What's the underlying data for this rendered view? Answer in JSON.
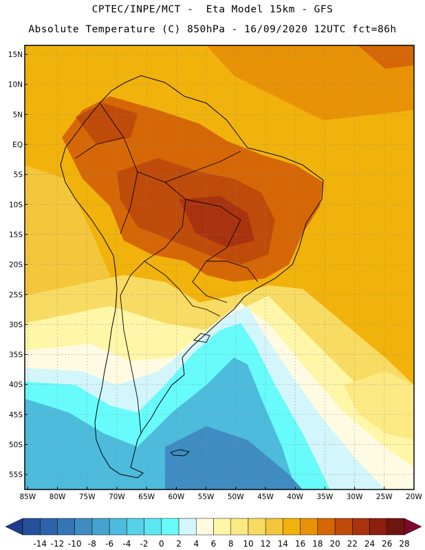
{
  "header": {
    "line1": "CPTEC/INPE/MCT -  Eta Model 15km - GFS",
    "line2": "Absolute Temperature (C) 850hPa - 16/09/2020 12UTC fct=86h"
  },
  "map": {
    "lat_labels": [
      "15N",
      "10N",
      "5N",
      "EQ",
      "5S",
      "10S",
      "15S",
      "20S",
      "25S",
      "30S",
      "35S",
      "40S",
      "45S",
      "50S",
      "55S"
    ],
    "lat_values": [
      15,
      10,
      5,
      0,
      -5,
      -10,
      -15,
      -20,
      -25,
      -30,
      -35,
      -40,
      -45,
      -50,
      -55
    ],
    "lon_labels": [
      "85W",
      "80W",
      "75W",
      "70W",
      "65W",
      "60W",
      "55W",
      "50W",
      "45W",
      "40W",
      "35W",
      "30W",
      "25W",
      "20W"
    ],
    "lon_values": [
      -85,
      -80,
      -75,
      -70,
      -65,
      -60,
      -55,
      -50,
      -45,
      -40,
      -35,
      -30,
      -25,
      -20
    ],
    "extent": {
      "lon": [
        -85.5,
        -20
      ],
      "lat": [
        -57.5,
        16.5
      ]
    }
  },
  "colorbar": {
    "labels": [
      "-14",
      "-12",
      "-10",
      "-8",
      "-6",
      "-4",
      "-2",
      "0",
      "2",
      "4",
      "6",
      "8",
      "10",
      "12",
      "14",
      "16",
      "18",
      "20",
      "22",
      "24",
      "26",
      "28"
    ],
    "colors": [
      "#1f3c8c",
      "#27509a",
      "#2d63a8",
      "#3576b4",
      "#3f8cc2",
      "#46a3cf",
      "#4dbbdc",
      "#55d2e7",
      "#5ce7f0",
      "#67fbfb",
      "#d2f6fb",
      "#fffbe3",
      "#fff6a8",
      "#fbe983",
      "#f8db62",
      "#f3c63c",
      "#f1b20c",
      "#e89206",
      "#d66707",
      "#bf4b0a",
      "#a9330e",
      "#8a1f12",
      "#6f1510",
      "#7b0a2c"
    ]
  }
}
